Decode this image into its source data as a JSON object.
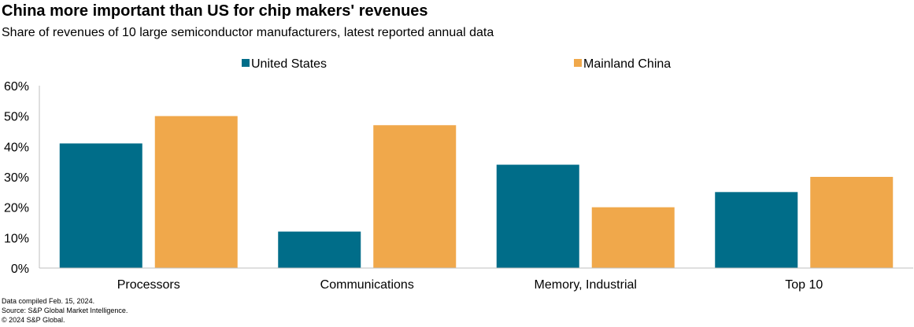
{
  "title": "China more important than US for chip makers' revenues",
  "subtitle": "Share of revenues of 10 large semiconductor manufacturers, latest reported annual data",
  "footer": {
    "line1": "Data compiled Feb. 15, 2024.",
    "line2": "Source: S&P Global Market Intelligence.",
    "line3": "© 2024 S&P Global."
  },
  "colors": {
    "us": "#006d89",
    "china": "#f0a84b",
    "axis": "#bfbfbf"
  },
  "chart_data": {
    "type": "bar",
    "categories": [
      "Processors",
      "Communications",
      "Memory, Industrial",
      "Top 10"
    ],
    "series": [
      {
        "name": "United States",
        "values": [
          41,
          12,
          34,
          25
        ]
      },
      {
        "name": "Mainland China",
        "values": [
          50,
          47,
          20,
          30
        ]
      }
    ],
    "ylim": [
      0,
      60
    ],
    "yticks": [
      0,
      10,
      20,
      30,
      40,
      50,
      60
    ],
    "ytick_labels": [
      "0%",
      "10%",
      "20%",
      "30%",
      "40%",
      "50%",
      "60%"
    ],
    "legend_position": "top-center",
    "grid": false
  }
}
